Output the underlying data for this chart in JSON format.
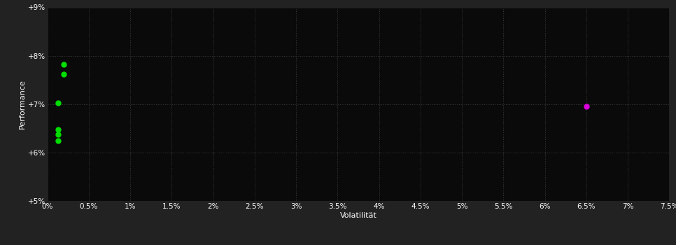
{
  "background_color": "#222222",
  "plot_bg_color": "#0a0a0a",
  "grid_color": "#3a3a3a",
  "text_color": "#ffffff",
  "xlabel": "Volatilität",
  "ylabel": "Performance",
  "xlim": [
    0,
    7.5
  ],
  "ylim": [
    5.0,
    9.0
  ],
  "xtick_labels": [
    "0%",
    "0.5%",
    "1%",
    "1.5%",
    "2%",
    "2.5%",
    "3%",
    "3.5%",
    "4%",
    "4.5%",
    "5%",
    "5.5%",
    "6%",
    "6.5%",
    "7%",
    "7.5%"
  ],
  "xtick_values": [
    0,
    0.5,
    1.0,
    1.5,
    2.0,
    2.5,
    3.0,
    3.5,
    4.0,
    4.5,
    5.0,
    5.5,
    6.0,
    6.5,
    7.0,
    7.5
  ],
  "ytick_labels": [
    "+5%",
    "+6%",
    "+7%",
    "+8%",
    "+9%"
  ],
  "ytick_values": [
    5.0,
    6.0,
    7.0,
    8.0,
    9.0
  ],
  "green_points": [
    [
      0.2,
      7.82
    ],
    [
      0.2,
      7.62
    ],
    [
      0.13,
      7.02
    ],
    [
      0.13,
      6.48
    ],
    [
      0.13,
      6.38
    ],
    [
      0.13,
      6.25
    ]
  ],
  "magenta_points": [
    [
      6.5,
      6.95
    ]
  ],
  "green_color": "#00dd00",
  "magenta_color": "#dd00dd",
  "marker_size": 5
}
